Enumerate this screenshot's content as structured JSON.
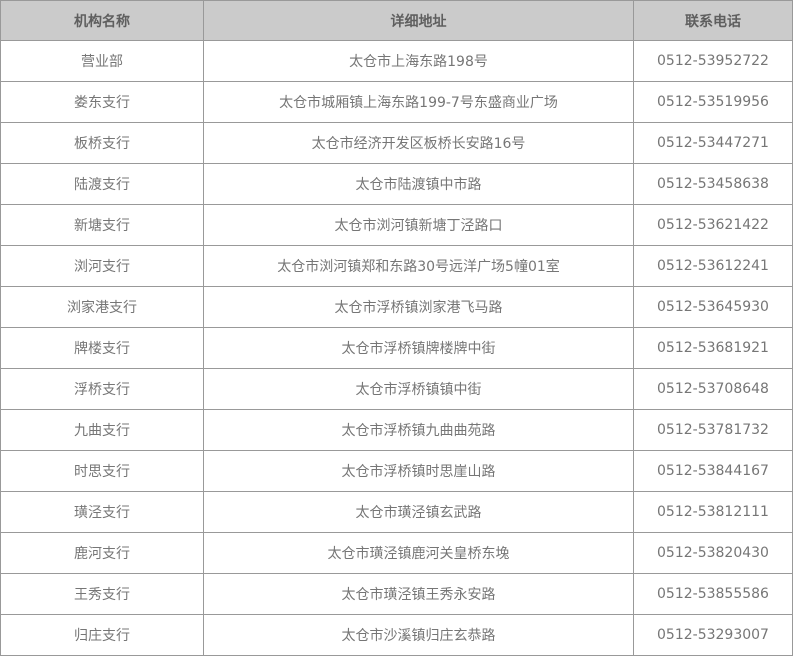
{
  "table": {
    "headers": {
      "name": "机构名称",
      "address": "详细地址",
      "phone": "联系电话"
    },
    "rows": [
      {
        "name": "营业部",
        "address": "太仓市上海东路198号",
        "phone": "0512-53952722"
      },
      {
        "name": "娄东支行",
        "address": "太仓市城厢镇上海东路199-7号东盛商业广场",
        "phone": "0512-53519956"
      },
      {
        "name": "板桥支行",
        "address": "太仓市经济开发区板桥长安路16号",
        "phone": "0512-53447271"
      },
      {
        "name": "陆渡支行",
        "address": "太仓市陆渡镇中市路",
        "phone": "0512-53458638"
      },
      {
        "name": "新塘支行",
        "address": "太仓市浏河镇新塘丁泾路口",
        "phone": "0512-53621422"
      },
      {
        "name": "浏河支行",
        "address": "太仓市浏河镇郑和东路30号远洋广场5幢01室",
        "phone": "0512-53612241"
      },
      {
        "name": "浏家港支行",
        "address": "太仓市浮桥镇浏家港飞马路",
        "phone": "0512-53645930"
      },
      {
        "name": "牌楼支行",
        "address": "太仓市浮桥镇牌楼牌中街",
        "phone": "0512-53681921"
      },
      {
        "name": "浮桥支行",
        "address": "太仓市浮桥镇镇中街",
        "phone": "0512-53708648"
      },
      {
        "name": "九曲支行",
        "address": "太仓市浮桥镇九曲曲苑路",
        "phone": "0512-53781732"
      },
      {
        "name": "时思支行",
        "address": "太仓市浮桥镇时思崖山路",
        "phone": "0512-53844167"
      },
      {
        "name": "璜泾支行",
        "address": "太仓市璜泾镇玄武路",
        "phone": "0512-53812111"
      },
      {
        "name": "鹿河支行",
        "address": "太仓市璜泾镇鹿河关皇桥东堍",
        "phone": "0512-53820430"
      },
      {
        "name": "王秀支行",
        "address": "太仓市璜泾镇王秀永安路",
        "phone": "0512-53855586"
      },
      {
        "name": "归庄支行",
        "address": "太仓市沙溪镇归庄玄恭路",
        "phone": "0512-53293007"
      }
    ],
    "colors": {
      "header_bg": "#cbcbcb",
      "border": "#999999",
      "header_text": "#5f5f5f",
      "body_text": "#767676"
    }
  }
}
